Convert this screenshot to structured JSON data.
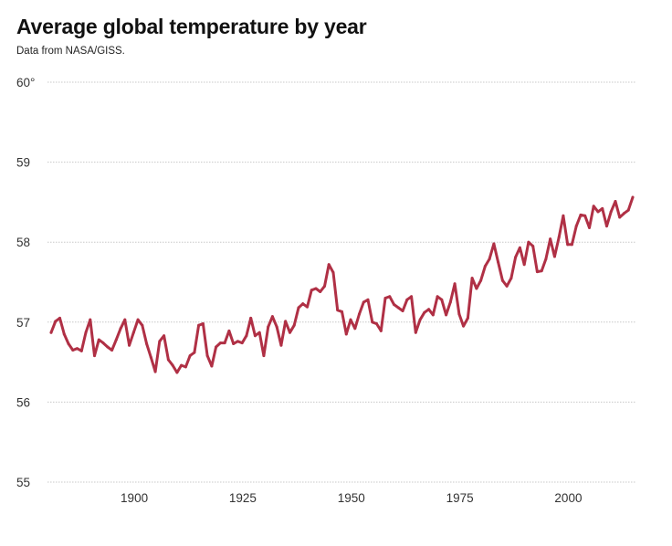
{
  "chart_data": {
    "type": "line",
    "title": "Average global temperature by year",
    "subtitle": "Data from NASA/GISS.",
    "xlabel": "",
    "ylabel": "",
    "xlim": [
      1880,
      2014
    ],
    "ylim": [
      55,
      60
    ],
    "grid": true,
    "line_color": "#b03045",
    "y_ticks": [
      {
        "value": 60,
        "label": "60°"
      },
      {
        "value": 59,
        "label": "59"
      },
      {
        "value": 58,
        "label": "58"
      },
      {
        "value": 57,
        "label": "57"
      },
      {
        "value": 56,
        "label": "56"
      },
      {
        "value": 55,
        "label": "55"
      }
    ],
    "x_ticks": [
      {
        "value": 1900,
        "label": "1900"
      },
      {
        "value": 1925,
        "label": "1925"
      },
      {
        "value": 1950,
        "label": "1950"
      },
      {
        "value": 1975,
        "label": "1975"
      },
      {
        "value": 2000,
        "label": "2000"
      }
    ],
    "x_start": 1880,
    "values": [
      56.87,
      57.01,
      57.05,
      56.85,
      56.73,
      56.65,
      56.67,
      56.64,
      56.87,
      57.03,
      56.58,
      56.78,
      56.74,
      56.69,
      56.65,
      56.78,
      56.92,
      57.03,
      56.71,
      56.87,
      57.03,
      56.96,
      56.73,
      56.56,
      56.38,
      56.76,
      56.83,
      56.53,
      56.46,
      56.37,
      56.46,
      56.44,
      56.58,
      56.62,
      56.96,
      56.98,
      56.58,
      56.45,
      56.69,
      56.74,
      56.74,
      56.89,
      56.73,
      56.76,
      56.74,
      56.83,
      57.05,
      56.83,
      56.87,
      56.58,
      56.94,
      57.07,
      56.94,
      56.71,
      57.01,
      56.87,
      56.96,
      57.18,
      57.23,
      57.19,
      57.4,
      57.42,
      57.38,
      57.45,
      57.72,
      57.62,
      57.15,
      57.13,
      56.85,
      57.03,
      56.92,
      57.1,
      57.25,
      57.28,
      57.0,
      56.98,
      56.89,
      57.3,
      57.32,
      57.22,
      57.18,
      57.14,
      57.28,
      57.32,
      56.87,
      57.03,
      57.12,
      57.16,
      57.09,
      57.32,
      57.28,
      57.09,
      57.25,
      57.48,
      57.1,
      56.95,
      57.05,
      57.55,
      57.42,
      57.52,
      57.7,
      57.79,
      57.98,
      57.75,
      57.52,
      57.45,
      57.55,
      57.81,
      57.93,
      57.72,
      58.0,
      57.95,
      57.63,
      57.64,
      57.79,
      58.04,
      57.82,
      58.06,
      58.33,
      57.97,
      57.97,
      58.2,
      58.34,
      58.33,
      58.18,
      58.45,
      58.38,
      58.42,
      58.2,
      58.38,
      58.51,
      58.31,
      58.36,
      58.4,
      58.56
    ]
  }
}
